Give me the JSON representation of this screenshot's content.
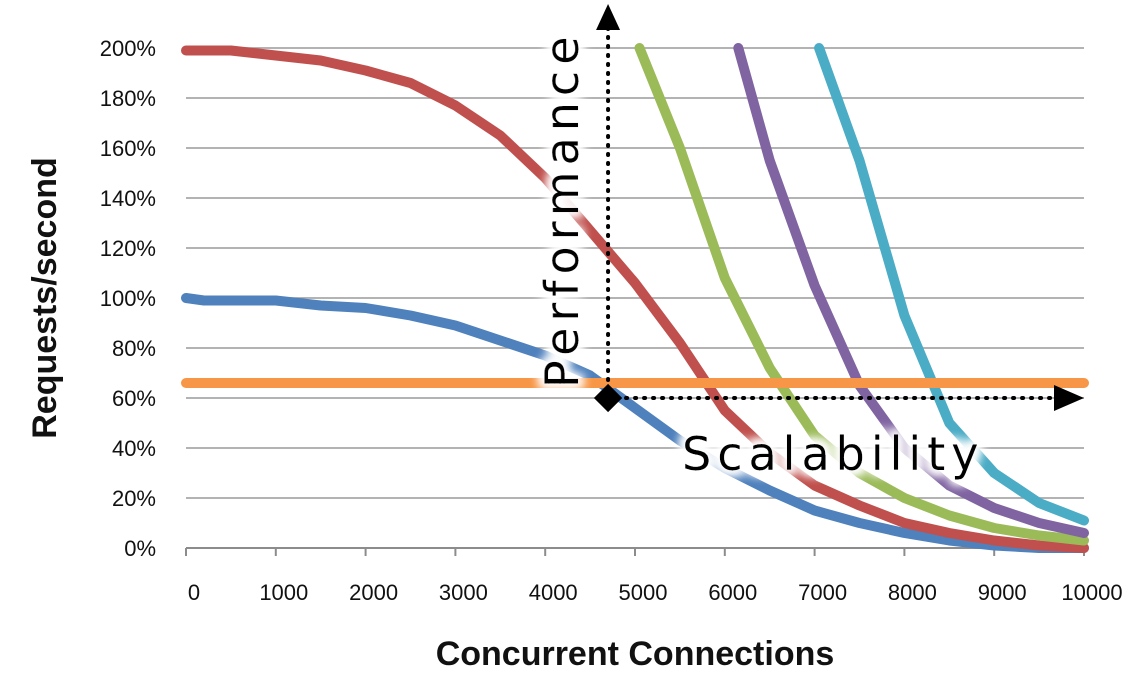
{
  "chart_data": {
    "type": "line",
    "xlabel": "Concurrent Connections",
    "ylabel": "Requests/second",
    "xlim": [
      0,
      10000
    ],
    "ylim": [
      0,
      200
    ],
    "x_ticks": [
      "0",
      "1000",
      "2000",
      "3000",
      "4000",
      "5000",
      "6000",
      "7000",
      "8000",
      "9000",
      "10000"
    ],
    "y_ticks": [
      "0%",
      "20%",
      "40%",
      "60%",
      "80%",
      "100%",
      "120%",
      "140%",
      "160%",
      "180%",
      "200%"
    ],
    "grid": true,
    "series": [
      {
        "color": "#4f81bd",
        "points": [
          [
            0,
            100
          ],
          [
            200,
            99
          ],
          [
            500,
            99
          ],
          [
            1000,
            99
          ],
          [
            1500,
            97
          ],
          [
            2000,
            96
          ],
          [
            2500,
            93
          ],
          [
            3000,
            89
          ],
          [
            3500,
            83
          ],
          [
            4000,
            77
          ],
          [
            4500,
            69
          ],
          [
            5000,
            56
          ],
          [
            5500,
            43
          ],
          [
            6000,
            32
          ],
          [
            6500,
            23
          ],
          [
            7000,
            15
          ],
          [
            7500,
            10
          ],
          [
            8000,
            6
          ],
          [
            8500,
            3
          ],
          [
            9000,
            1
          ],
          [
            9500,
            0
          ],
          [
            10000,
            0
          ]
        ]
      },
      {
        "color": "#c0504d",
        "points": [
          [
            0,
            199
          ],
          [
            500,
            199
          ],
          [
            1000,
            197
          ],
          [
            1500,
            195
          ],
          [
            2000,
            191
          ],
          [
            2500,
            186
          ],
          [
            3000,
            177
          ],
          [
            3500,
            165
          ],
          [
            4000,
            148
          ],
          [
            4500,
            127
          ],
          [
            5000,
            106
          ],
          [
            5500,
            82
          ],
          [
            6000,
            55
          ],
          [
            6500,
            38
          ],
          [
            7000,
            25
          ],
          [
            7500,
            17
          ],
          [
            8000,
            10
          ],
          [
            8500,
            6
          ],
          [
            9000,
            3
          ],
          [
            9500,
            1
          ],
          [
            10000,
            0
          ]
        ]
      },
      {
        "color": "#9bbb59",
        "points": [
          [
            5050,
            200
          ],
          [
            5500,
            160
          ],
          [
            6000,
            108
          ],
          [
            6500,
            72
          ],
          [
            7000,
            45
          ],
          [
            7500,
            30
          ],
          [
            8000,
            20
          ],
          [
            8500,
            13
          ],
          [
            9000,
            8
          ],
          [
            9500,
            5
          ],
          [
            10000,
            3
          ]
        ]
      },
      {
        "color": "#8064a2",
        "points": [
          [
            6150,
            200
          ],
          [
            6500,
            155
          ],
          [
            7000,
            105
          ],
          [
            7500,
            65
          ],
          [
            8000,
            40
          ],
          [
            8500,
            25
          ],
          [
            9000,
            16
          ],
          [
            9500,
            10
          ],
          [
            10000,
            6
          ]
        ]
      },
      {
        "color": "#4bacc6",
        "points": [
          [
            7050,
            200
          ],
          [
            7500,
            155
          ],
          [
            8000,
            93
          ],
          [
            8500,
            50
          ],
          [
            9000,
            30
          ],
          [
            9500,
            18
          ],
          [
            10000,
            11
          ]
        ]
      },
      {
        "color": "#f79646",
        "points": [
          [
            0,
            66
          ],
          [
            10000,
            66
          ]
        ]
      }
    ],
    "annotations": [
      {
        "text": "Performance",
        "orientation": "vertical"
      },
      {
        "text": "Scalability",
        "orientation": "horizontal"
      }
    ],
    "operating_point": [
      4700,
      60
    ]
  }
}
